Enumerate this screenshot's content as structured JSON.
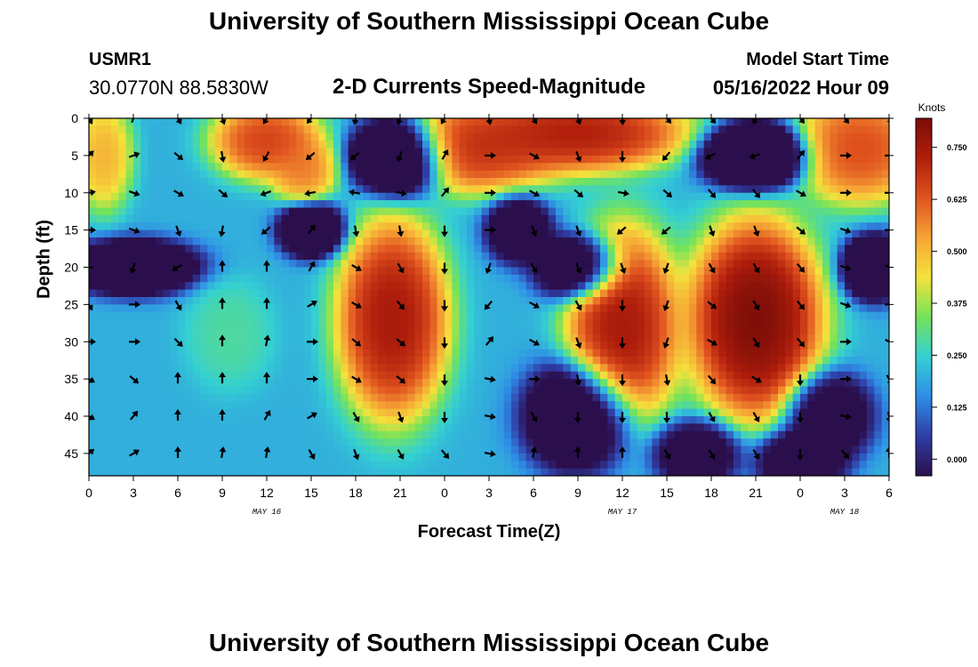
{
  "header": {
    "title": "University of Southern Mississippi Ocean Cube",
    "station_id": "USMR1",
    "station_coords": "30.0770N  88.5830W",
    "plot_title": "2-D Currents Speed-Magnitude",
    "start_label": "Model Start Time",
    "start_value": "05/16/2022 Hour 09"
  },
  "footer": {
    "title": "University of Southern Mississippi Ocean Cube"
  },
  "chart_data": {
    "type": "heatmap",
    "title": "2-D Currents Speed-Magnitude",
    "xlabel": "Forecast Time(Z)",
    "ylabel": "Depth (ft)",
    "x_hours_range": [
      0,
      54
    ],
    "y_range": [
      0,
      48
    ],
    "x_tick_labels": [
      "0",
      "3",
      "6",
      "9",
      "12",
      "15",
      "18",
      "21",
      "0",
      "3",
      "6",
      "9",
      "12",
      "15",
      "18",
      "21",
      "0",
      "3",
      "6"
    ],
    "y_ticks": [
      0,
      5,
      10,
      15,
      20,
      25,
      30,
      35,
      40,
      45
    ],
    "date_labels": [
      {
        "text": "MAY 16",
        "hour": 12
      },
      {
        "text": "MAY 17",
        "hour": 36
      },
      {
        "text": "MAY 18",
        "hour": 51
      }
    ],
    "colorbar": {
      "unit": "Knots",
      "min": -0.04,
      "max": 0.82,
      "ticks": [
        "0.750",
        "0.625",
        "0.500",
        "0.375",
        "0.250",
        "0.125",
        "0.000"
      ],
      "colors": [
        "#2b0f4d",
        "#2f3da6",
        "#2f8de6",
        "#34d0d2",
        "#74e35a",
        "#f4e23b",
        "#f6a335",
        "#e0531f",
        "#b01e0c",
        "#7a0d08"
      ]
    },
    "speed_centers": [
      {
        "hour": 1,
        "depth": 5,
        "speed": 0.55,
        "spread_h": 1.3,
        "spread_d": 5
      },
      {
        "hour": 12,
        "depth": 3,
        "speed": 0.72,
        "spread_h": 2.5,
        "spread_d": 3.5
      },
      {
        "hour": 14.5,
        "depth": 7,
        "speed": 0.62,
        "spread_h": 1.5,
        "spread_d": 3
      },
      {
        "hour": 21,
        "depth": 5,
        "speed": -0.55,
        "spread_h": 2.2,
        "spread_d": 3.5
      },
      {
        "hour": 15,
        "depth": 15,
        "speed": -0.35,
        "spread_h": 1.5,
        "spread_d": 2.5
      },
      {
        "hour": 3,
        "depth": 20,
        "speed": -0.35,
        "spread_h": 3,
        "spread_d": 2.5
      },
      {
        "hour": 9.5,
        "depth": 29,
        "speed": 0.3,
        "spread_h": 2,
        "spread_d": 5
      },
      {
        "hour": 20.5,
        "depth": 27,
        "speed": 0.82,
        "spread_h": 2.5,
        "spread_d": 9
      },
      {
        "hour": 26,
        "depth": 4,
        "speed": 0.75,
        "spread_h": 4,
        "spread_d": 4
      },
      {
        "hour": 33,
        "depth": 2,
        "speed": 0.8,
        "spread_h": 5,
        "spread_d": 3.5
      },
      {
        "hour": 29,
        "depth": 15,
        "speed": -0.25,
        "spread_h": 1.5,
        "spread_d": 3
      },
      {
        "hour": 33,
        "depth": 20,
        "speed": -0.3,
        "spread_h": 2,
        "spread_d": 3
      },
      {
        "hour": 33,
        "depth": 40,
        "speed": -0.3,
        "spread_h": 2.5,
        "spread_d": 5
      },
      {
        "hour": 36,
        "depth": 28,
        "speed": 0.82,
        "spread_h": 2.5,
        "spread_d": 9
      },
      {
        "hour": 45,
        "depth": 27,
        "speed": 0.9,
        "spread_h": 3,
        "spread_d": 9
      },
      {
        "hour": 45,
        "depth": 5,
        "speed": -0.45,
        "spread_h": 2.5,
        "spread_d": 3
      },
      {
        "hour": 52,
        "depth": 4,
        "speed": 0.7,
        "spread_h": 3,
        "spread_d": 5
      },
      {
        "hour": 53,
        "depth": 20,
        "speed": -0.35,
        "spread_h": 1.5,
        "spread_d": 3
      },
      {
        "hour": 50,
        "depth": 40,
        "speed": -0.2,
        "spread_h": 2,
        "spread_d": 4
      },
      {
        "hour": 41,
        "depth": 45,
        "speed": -0.2,
        "spread_h": 2,
        "spread_d": 3
      },
      {
        "hour": 48,
        "depth": 46,
        "speed": -0.25,
        "spread_h": 2,
        "spread_d": 3
      }
    ],
    "speed_baseline": 0.2,
    "vector_hours": [
      0,
      3,
      6,
      9,
      12,
      15,
      18,
      21,
      24,
      27,
      30,
      33,
      36,
      39,
      42,
      45,
      48,
      51,
      54
    ],
    "vector_depths": [
      0,
      5,
      10,
      15,
      20,
      25,
      30,
      35,
      40,
      45
    ],
    "vector_directions_deg": [
      [
        150,
        20,
        150,
        160,
        210,
        220,
        190,
        200,
        210,
        170,
        150,
        160,
        175,
        140,
        140,
        200,
        140,
        140,
        150
      ],
      [
        45,
        70,
        130,
        170,
        210,
        230,
        230,
        200,
        30,
        90,
        120,
        160,
        180,
        220,
        240,
        250,
        40,
        90,
        90
      ],
      [
        80,
        110,
        120,
        130,
        250,
        260,
        280,
        100,
        40,
        90,
        120,
        130,
        100,
        130,
        140,
        140,
        120,
        90,
        90
      ],
      [
        90,
        110,
        160,
        190,
        230,
        40,
        170,
        170,
        180,
        90,
        160,
        160,
        230,
        230,
        160,
        160,
        130,
        110,
        90
      ],
      [
        280,
        200,
        240,
        0,
        0,
        30,
        120,
        150,
        180,
        200,
        150,
        160,
        160,
        200,
        150,
        150,
        140,
        110,
        120
      ],
      [
        150,
        90,
        150,
        0,
        0,
        60,
        120,
        140,
        180,
        220,
        120,
        150,
        180,
        200,
        130,
        150,
        140,
        110,
        90
      ],
      [
        90,
        90,
        135,
        0,
        10,
        90,
        130,
        130,
        180,
        40,
        120,
        160,
        180,
        200,
        120,
        150,
        140,
        90,
        120
      ],
      [
        120,
        130,
        0,
        0,
        0,
        90,
        120,
        130,
        180,
        100,
        90,
        170,
        180,
        170,
        140,
        120,
        180,
        90,
        150
      ],
      [
        120,
        40,
        0,
        0,
        30,
        60,
        150,
        160,
        180,
        100,
        150,
        180,
        180,
        180,
        150,
        150,
        180,
        100,
        170
      ],
      [
        50,
        60,
        0,
        10,
        10,
        150,
        160,
        150,
        140,
        100,
        10,
        0,
        0,
        150,
        150,
        150,
        180,
        140,
        0
      ]
    ]
  }
}
